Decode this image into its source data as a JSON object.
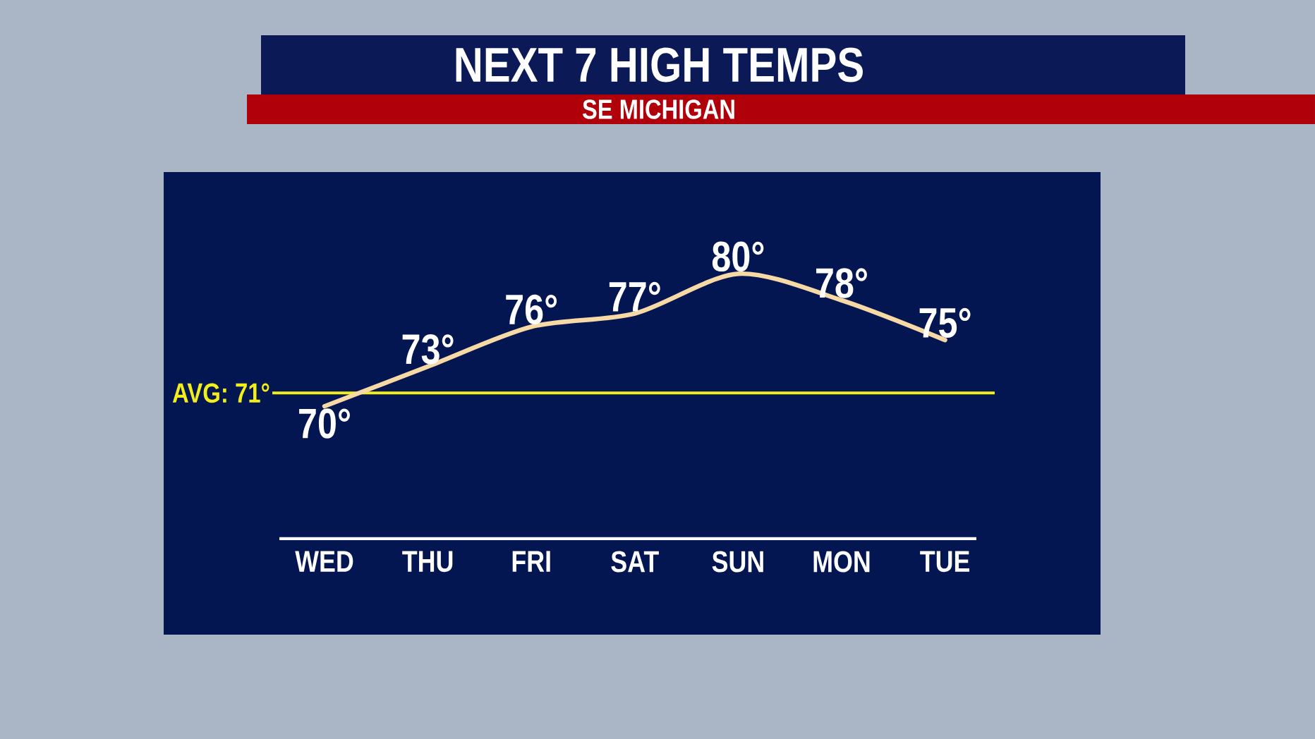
{
  "chart_data": {
    "type": "line",
    "title": "NEXT 7 HIGH TEMPS",
    "subtitle": "SE MICHIGAN",
    "categories": [
      "WED",
      "THU",
      "FRI",
      "SAT",
      "SUN",
      "MON",
      "TUE"
    ],
    "values": [
      70,
      73,
      76,
      77,
      80,
      78,
      75
    ],
    "value_labels": [
      "70°",
      "73°",
      "76°",
      "77°",
      "80°",
      "78°",
      "75°"
    ],
    "color": "#f7d9a5",
    "marker": "none",
    "line_style": "solid",
    "ref_lines": [
      {
        "axis": "y",
        "value": 71,
        "label": "AVG: 71°",
        "color": "#f2ee1a"
      }
    ]
  }
}
